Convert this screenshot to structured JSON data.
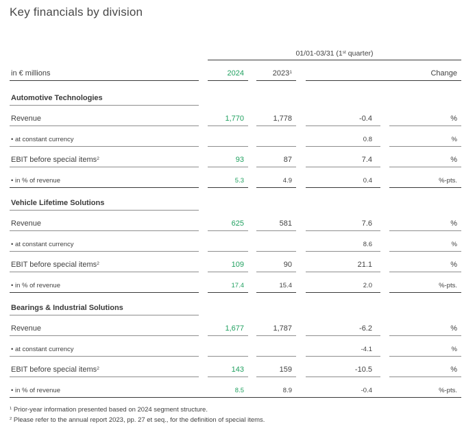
{
  "title": "Key financials by division",
  "colors": {
    "accent_green": "#1FA05F",
    "text": "#3F3F3F",
    "rule_gray": "#8D8D8D",
    "rule_dark": "#383838"
  },
  "table": {
    "period": {
      "prefix": "01/01-03/31 (1",
      "sup": "st",
      "suffix": " quarter)"
    },
    "unit_label": "in € millions",
    "columns": {
      "y2024": "2024",
      "y2023": "2023",
      "y2023_sup": "1",
      "change": "Change"
    },
    "sections": [
      {
        "name": "Automotive Technologies",
        "rows": [
          {
            "label": "Revenue",
            "bullet": false,
            "label_sup": "",
            "v2024": "1,770",
            "v2023": "1,778",
            "change": "-0.4",
            "unit": "%"
          },
          {
            "label": "at constant currency",
            "bullet": true,
            "label_sup": "",
            "v2024": "",
            "v2023": "",
            "change": "0.8",
            "unit": "%"
          },
          {
            "label": "EBIT before special items",
            "bullet": false,
            "label_sup": "2",
            "v2024": "93",
            "v2023": "87",
            "change": "7.4",
            "unit": "%"
          },
          {
            "label": "in % of revenue",
            "bullet": true,
            "label_sup": "",
            "v2024": "5.3",
            "v2023": "4.9",
            "change": "0.4",
            "unit": "%-pts."
          }
        ]
      },
      {
        "name": "Vehicle Lifetime Solutions",
        "rows": [
          {
            "label": "Revenue",
            "bullet": false,
            "label_sup": "",
            "v2024": "625",
            "v2023": "581",
            "change": "7.6",
            "unit": "%"
          },
          {
            "label": "at constant currency",
            "bullet": true,
            "label_sup": "",
            "v2024": "",
            "v2023": "",
            "change": "8.6",
            "unit": "%"
          },
          {
            "label": "EBIT before special items",
            "bullet": false,
            "label_sup": "2",
            "v2024": "109",
            "v2023": "90",
            "change": "21.1",
            "unit": "%"
          },
          {
            "label": "in % of revenue",
            "bullet": true,
            "label_sup": "",
            "v2024": "17.4",
            "v2023": "15.4",
            "change": "2.0",
            "unit": "%-pts."
          }
        ]
      },
      {
        "name": "Bearings & Industrial Solutions",
        "rows": [
          {
            "label": "Revenue",
            "bullet": false,
            "label_sup": "",
            "v2024": "1,677",
            "v2023": "1,787",
            "change": "-6.2",
            "unit": "%"
          },
          {
            "label": "at constant currency",
            "bullet": true,
            "label_sup": "",
            "v2024": "",
            "v2023": "",
            "change": "-4.1",
            "unit": "%"
          },
          {
            "label": "EBIT before special items",
            "bullet": false,
            "label_sup": "2",
            "v2024": "143",
            "v2023": "159",
            "change": "-10.5",
            "unit": "%"
          },
          {
            "label": "in % of revenue",
            "bullet": true,
            "label_sup": "",
            "v2024": "8.5",
            "v2023": "8.9",
            "change": "-0.4",
            "unit": "%-pts."
          }
        ]
      }
    ]
  },
  "footnotes": [
    {
      "marker": "1",
      "text": "Prior-year information presented based on 2024 segment structure."
    },
    {
      "marker": "2",
      "text": "Please refer to the annual report 2023, pp. 27 et seq., for the definition of special items."
    }
  ]
}
